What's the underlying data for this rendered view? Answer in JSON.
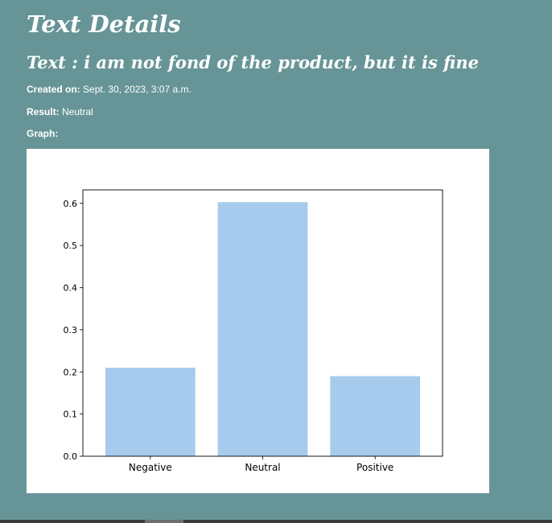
{
  "page": {
    "title": "Text Details",
    "text_prefix": "Text : ",
    "text_value": "i am not fond of the product, but it is fine",
    "created_label": "Created on:",
    "created_value": "Sept. 30, 2023, 3:07 a.m.",
    "result_label": "Result:",
    "result_value": "Neutral",
    "graph_label": "Graph:"
  },
  "colors": {
    "background": "#679597",
    "bar": "#a7cbec"
  },
  "chart_data": {
    "type": "bar",
    "categories": [
      "Negative",
      "Neutral",
      "Positive"
    ],
    "values": [
      0.21,
      0.603,
      0.19
    ],
    "title": "",
    "xlabel": "",
    "ylabel": "",
    "ylim": [
      0,
      0.632
    ],
    "yticks": [
      "0.0",
      "0.1",
      "0.2",
      "0.3",
      "0.4",
      "0.5",
      "0.6"
    ],
    "grid": false
  }
}
